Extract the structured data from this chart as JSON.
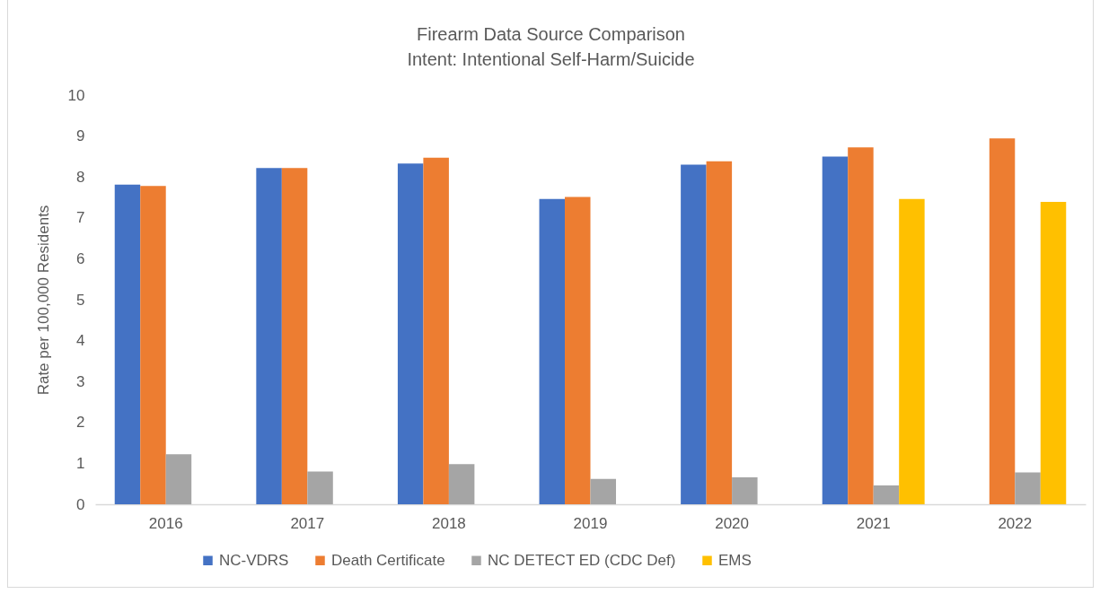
{
  "chart_data": {
    "type": "bar",
    "title": "Firearm Data Source Comparison",
    "subtitle": "Intent: Intentional Self-Harm/Suicide",
    "ylabel": "Rate per 100,000 Residents",
    "categories": [
      "2016",
      "2017",
      "2018",
      "2019",
      "2020",
      "2021",
      "2022"
    ],
    "series": [
      {
        "name": "NC-VDRS",
        "color": "#4472c4",
        "values": [
          7.81,
          8.22,
          8.33,
          7.46,
          8.3,
          8.5,
          null
        ]
      },
      {
        "name": "Death Certificate",
        "color": "#ed7d31",
        "values": [
          7.78,
          8.22,
          8.47,
          7.51,
          8.38,
          8.72,
          8.94
        ]
      },
      {
        "name": "NC DETECT ED (CDC Def)",
        "color": "#a5a5a5",
        "values": [
          1.22,
          0.8,
          0.98,
          0.62,
          0.66,
          0.46,
          0.78
        ]
      },
      {
        "name": "EMS",
        "color": "#ffc000",
        "values": [
          null,
          null,
          null,
          null,
          null,
          7.46,
          7.39
        ]
      }
    ],
    "ylim": [
      0,
      10
    ],
    "yticks": [
      0,
      1,
      2,
      3,
      4,
      5,
      6,
      7,
      8,
      9,
      10
    ],
    "legend": "bottom"
  }
}
